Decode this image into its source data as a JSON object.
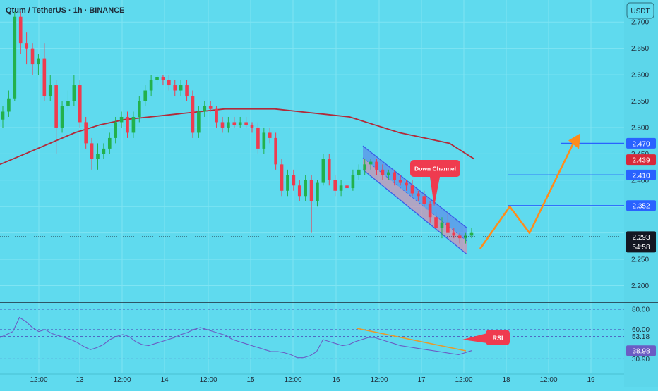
{
  "header": {
    "symbol": "Qtum / TetherUS · 1h · BINANCE",
    "currency": "USDT"
  },
  "colors": {
    "background": "#5fdaee",
    "up": "#22b14c",
    "down": "#ef3b4f",
    "ma": "#b22a39",
    "channel": "#3a5ee8",
    "projection": "#ff8c1a",
    "rsi_line": "#6b5cc4",
    "level_line": "#2962ff",
    "text": "#1e2a38"
  },
  "chart_data": [
    {
      "type": "candlestick",
      "title": "Qtum / TetherUS · 1h · BINANCE",
      "x_tick_labels": [
        "12:00",
        "13",
        "12:00",
        "14",
        "12:00",
        "15",
        "12:00",
        "16",
        "12:00",
        "17",
        "12:00",
        "18",
        "12:00",
        "19"
      ],
      "y_tick_labels": [
        "2.700",
        "2.650",
        "2.600",
        "2.550",
        "2.500",
        "2.450",
        "2.400",
        "2.250",
        "2.200"
      ],
      "ylim": [
        2.17,
        2.735
      ],
      "candles": [
        [
          2.515,
          2.54,
          2.5,
          2.53
        ],
        [
          2.53,
          2.57,
          2.52,
          2.555
        ],
        [
          2.555,
          2.72,
          2.55,
          2.71
        ],
        [
          2.71,
          2.72,
          2.64,
          2.66
        ],
        [
          2.66,
          2.68,
          2.62,
          2.65
        ],
        [
          2.65,
          2.66,
          2.6,
          2.62
        ],
        [
          2.62,
          2.64,
          2.6,
          2.63
        ],
        [
          2.63,
          2.66,
          2.55,
          2.56
        ],
        [
          2.56,
          2.6,
          2.55,
          2.58
        ],
        [
          2.58,
          2.59,
          2.45,
          2.5
        ],
        [
          2.5,
          2.55,
          2.49,
          2.54
        ],
        [
          2.54,
          2.57,
          2.53,
          2.55
        ],
        [
          2.55,
          2.6,
          2.54,
          2.58
        ],
        [
          2.58,
          2.59,
          2.5,
          2.51
        ],
        [
          2.51,
          2.52,
          2.46,
          2.47
        ],
        [
          2.47,
          2.48,
          2.42,
          2.44
        ],
        [
          2.44,
          2.47,
          2.42,
          2.45
        ],
        [
          2.45,
          2.47,
          2.44,
          2.46
        ],
        [
          2.46,
          2.49,
          2.45,
          2.48
        ],
        [
          2.48,
          2.52,
          2.47,
          2.51
        ],
        [
          2.51,
          2.53,
          2.5,
          2.52
        ],
        [
          2.52,
          2.53,
          2.48,
          2.49
        ],
        [
          2.49,
          2.53,
          2.48,
          2.52
        ],
        [
          2.52,
          2.56,
          2.51,
          2.55
        ],
        [
          2.55,
          2.58,
          2.54,
          2.57
        ],
        [
          2.57,
          2.6,
          2.56,
          2.59
        ],
        [
          2.59,
          2.6,
          2.58,
          2.595
        ],
        [
          2.595,
          2.6,
          2.58,
          2.59
        ],
        [
          2.59,
          2.6,
          2.57,
          2.58
        ],
        [
          2.58,
          2.59,
          2.56,
          2.57
        ],
        [
          2.57,
          2.59,
          2.56,
          2.58
        ],
        [
          2.58,
          2.59,
          2.55,
          2.56
        ],
        [
          2.56,
          2.57,
          2.48,
          2.49
        ],
        [
          2.49,
          2.54,
          2.48,
          2.53
        ],
        [
          2.53,
          2.55,
          2.52,
          2.54
        ],
        [
          2.54,
          2.55,
          2.53,
          2.535
        ],
        [
          2.535,
          2.54,
          2.5,
          2.51
        ],
        [
          2.51,
          2.52,
          2.49,
          2.5
        ],
        [
          2.5,
          2.52,
          2.49,
          2.51
        ],
        [
          2.51,
          2.52,
          2.5,
          2.505
        ],
        [
          2.505,
          2.52,
          2.5,
          2.51
        ],
        [
          2.51,
          2.52,
          2.5,
          2.505
        ],
        [
          2.505,
          2.51,
          2.49,
          2.5
        ],
        [
          2.5,
          2.51,
          2.45,
          2.46
        ],
        [
          2.46,
          2.5,
          2.45,
          2.49
        ],
        [
          2.49,
          2.5,
          2.47,
          2.48
        ],
        [
          2.48,
          2.49,
          2.42,
          2.43
        ],
        [
          2.43,
          2.44,
          2.37,
          2.38
        ],
        [
          2.38,
          2.42,
          2.37,
          2.41
        ],
        [
          2.41,
          2.42,
          2.38,
          2.39
        ],
        [
          2.39,
          2.4,
          2.36,
          2.37
        ],
        [
          2.37,
          2.41,
          2.36,
          2.4
        ],
        [
          2.4,
          2.41,
          2.3,
          2.36
        ],
        [
          2.36,
          2.4,
          2.35,
          2.395
        ],
        [
          2.395,
          2.45,
          2.39,
          2.44
        ],
        [
          2.44,
          2.45,
          2.39,
          2.4
        ],
        [
          2.4,
          2.41,
          2.37,
          2.38
        ],
        [
          2.38,
          2.4,
          2.37,
          2.39
        ],
        [
          2.39,
          2.4,
          2.38,
          2.385
        ],
        [
          2.385,
          2.42,
          2.38,
          2.41
        ],
        [
          2.41,
          2.43,
          2.4,
          2.42
        ],
        [
          2.42,
          2.44,
          2.41,
          2.43
        ],
        [
          2.43,
          2.44,
          2.42,
          2.435
        ],
        [
          2.435,
          2.44,
          2.41,
          2.42
        ],
        [
          2.42,
          2.43,
          2.4,
          2.41
        ],
        [
          2.41,
          2.42,
          2.4,
          2.415
        ],
        [
          2.415,
          2.42,
          2.39,
          2.4
        ],
        [
          2.4,
          2.41,
          2.39,
          2.395
        ],
        [
          2.395,
          2.4,
          2.38,
          2.39
        ],
        [
          2.39,
          2.4,
          2.37,
          2.375
        ],
        [
          2.375,
          2.38,
          2.36,
          2.37
        ],
        [
          2.37,
          2.38,
          2.35,
          2.355
        ],
        [
          2.355,
          2.36,
          2.32,
          2.33
        ],
        [
          2.33,
          2.34,
          2.3,
          2.31
        ],
        [
          2.31,
          2.33,
          2.29,
          2.32
        ],
        [
          2.32,
          2.34,
          2.3,
          2.3
        ],
        [
          2.3,
          2.31,
          2.29,
          2.295
        ],
        [
          2.295,
          2.3,
          2.28,
          2.29
        ],
        [
          2.29,
          2.3,
          2.28,
          2.295
        ],
        [
          2.295,
          2.31,
          2.29,
          2.3
        ]
      ],
      "moving_average": [
        2.43,
        2.45,
        2.47,
        2.49,
        2.505,
        2.515,
        2.52,
        2.525,
        2.53,
        2.535,
        2.535,
        2.535,
        2.53,
        2.525,
        2.52,
        2.505,
        2.49,
        2.48,
        2.47,
        2.44
      ],
      "down_channel": {
        "upper": [
          2.465,
          2.31
        ],
        "lower": [
          2.42,
          2.26
        ],
        "label": "Down Channel"
      },
      "levels": [
        2.47,
        2.41,
        2.352
      ],
      "projection": [
        2.27,
        2.35,
        2.3,
        2.47
      ],
      "price_tags": [
        {
          "label": "2.470",
          "value": 2.47,
          "style": "blue"
        },
        {
          "label": "2.439",
          "value": 2.439,
          "style": "red"
        },
        {
          "label": "2.410",
          "value": 2.41,
          "style": "blue"
        },
        {
          "label": "2.352",
          "value": 2.352,
          "style": "blue"
        },
        {
          "label": "2.293",
          "value": 2.293,
          "style": "dark"
        }
      ],
      "countdown": "54:58"
    },
    {
      "type": "line",
      "series": [
        {
          "name": "RSI",
          "values": [
            52,
            55,
            58,
            72,
            68,
            62,
            58,
            60,
            56,
            54,
            52,
            50,
            47,
            43,
            40,
            42,
            45,
            50,
            53,
            55,
            53,
            48,
            45,
            44,
            46,
            48,
            50,
            52,
            55,
            57,
            60,
            62,
            60,
            58,
            56,
            54,
            50,
            48,
            46,
            44,
            42,
            40,
            38,
            38,
            37,
            35,
            32,
            32,
            34,
            38,
            50,
            48,
            46,
            44,
            45,
            48,
            50,
            52,
            52,
            50,
            48,
            46,
            44,
            43,
            42,
            41,
            40,
            39,
            38,
            37,
            36,
            35,
            37,
            39
          ]
        }
      ],
      "y_tick_labels": [
        "80.00",
        "60.00",
        "53.18",
        "38.98",
        "30.90"
      ],
      "ylim": [
        22,
        85
      ],
      "label": "RSI"
    }
  ]
}
